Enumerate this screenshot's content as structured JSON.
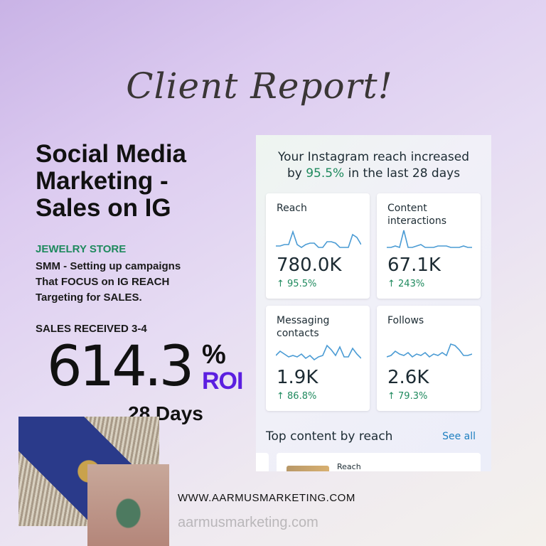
{
  "title": "Client Report!",
  "headline": [
    "Social Media",
    "Marketing -",
    "Sales on IG"
  ],
  "store": "JEWELRY STORE",
  "description": [
    "SMM - Setting up campaigns",
    "That FOCUS on IG REACH",
    "Targeting for SALES."
  ],
  "sales_received": "SALES RECEIVED 3-4",
  "roi": {
    "value": "614.3",
    "percent": "%",
    "label": "ROI"
  },
  "duration": "28 Days",
  "website": "WWW.AARMUSMARKETING.COM",
  "watermark": "aarmusmarketing.com",
  "colors": {
    "accent_green": "#1f8a5e",
    "roi_purple": "#5b1fe0",
    "sparkline": "#4a9bd4",
    "link_blue": "#1f7fc0"
  },
  "insights": {
    "headline_pre": "Your Instagram reach increased",
    "headline_by": "by ",
    "headline_pct": "95.5%",
    "headline_post": " in the last 28 days",
    "cards": [
      {
        "label": "Reach",
        "value": "780.0K",
        "change": "↑ 95.5%"
      },
      {
        "label": "Content interactions",
        "value": "67.1K",
        "change": "↑ 243%"
      },
      {
        "label": "Messaging contacts",
        "value": "1.9K",
        "change": "↑ 86.8%"
      },
      {
        "label": "Follows",
        "value": "2.6K",
        "change": "↑ 79.3%"
      }
    ],
    "top_content_title": "Top content by reach",
    "see_all": "See all",
    "top_item_label": "Reach"
  }
}
